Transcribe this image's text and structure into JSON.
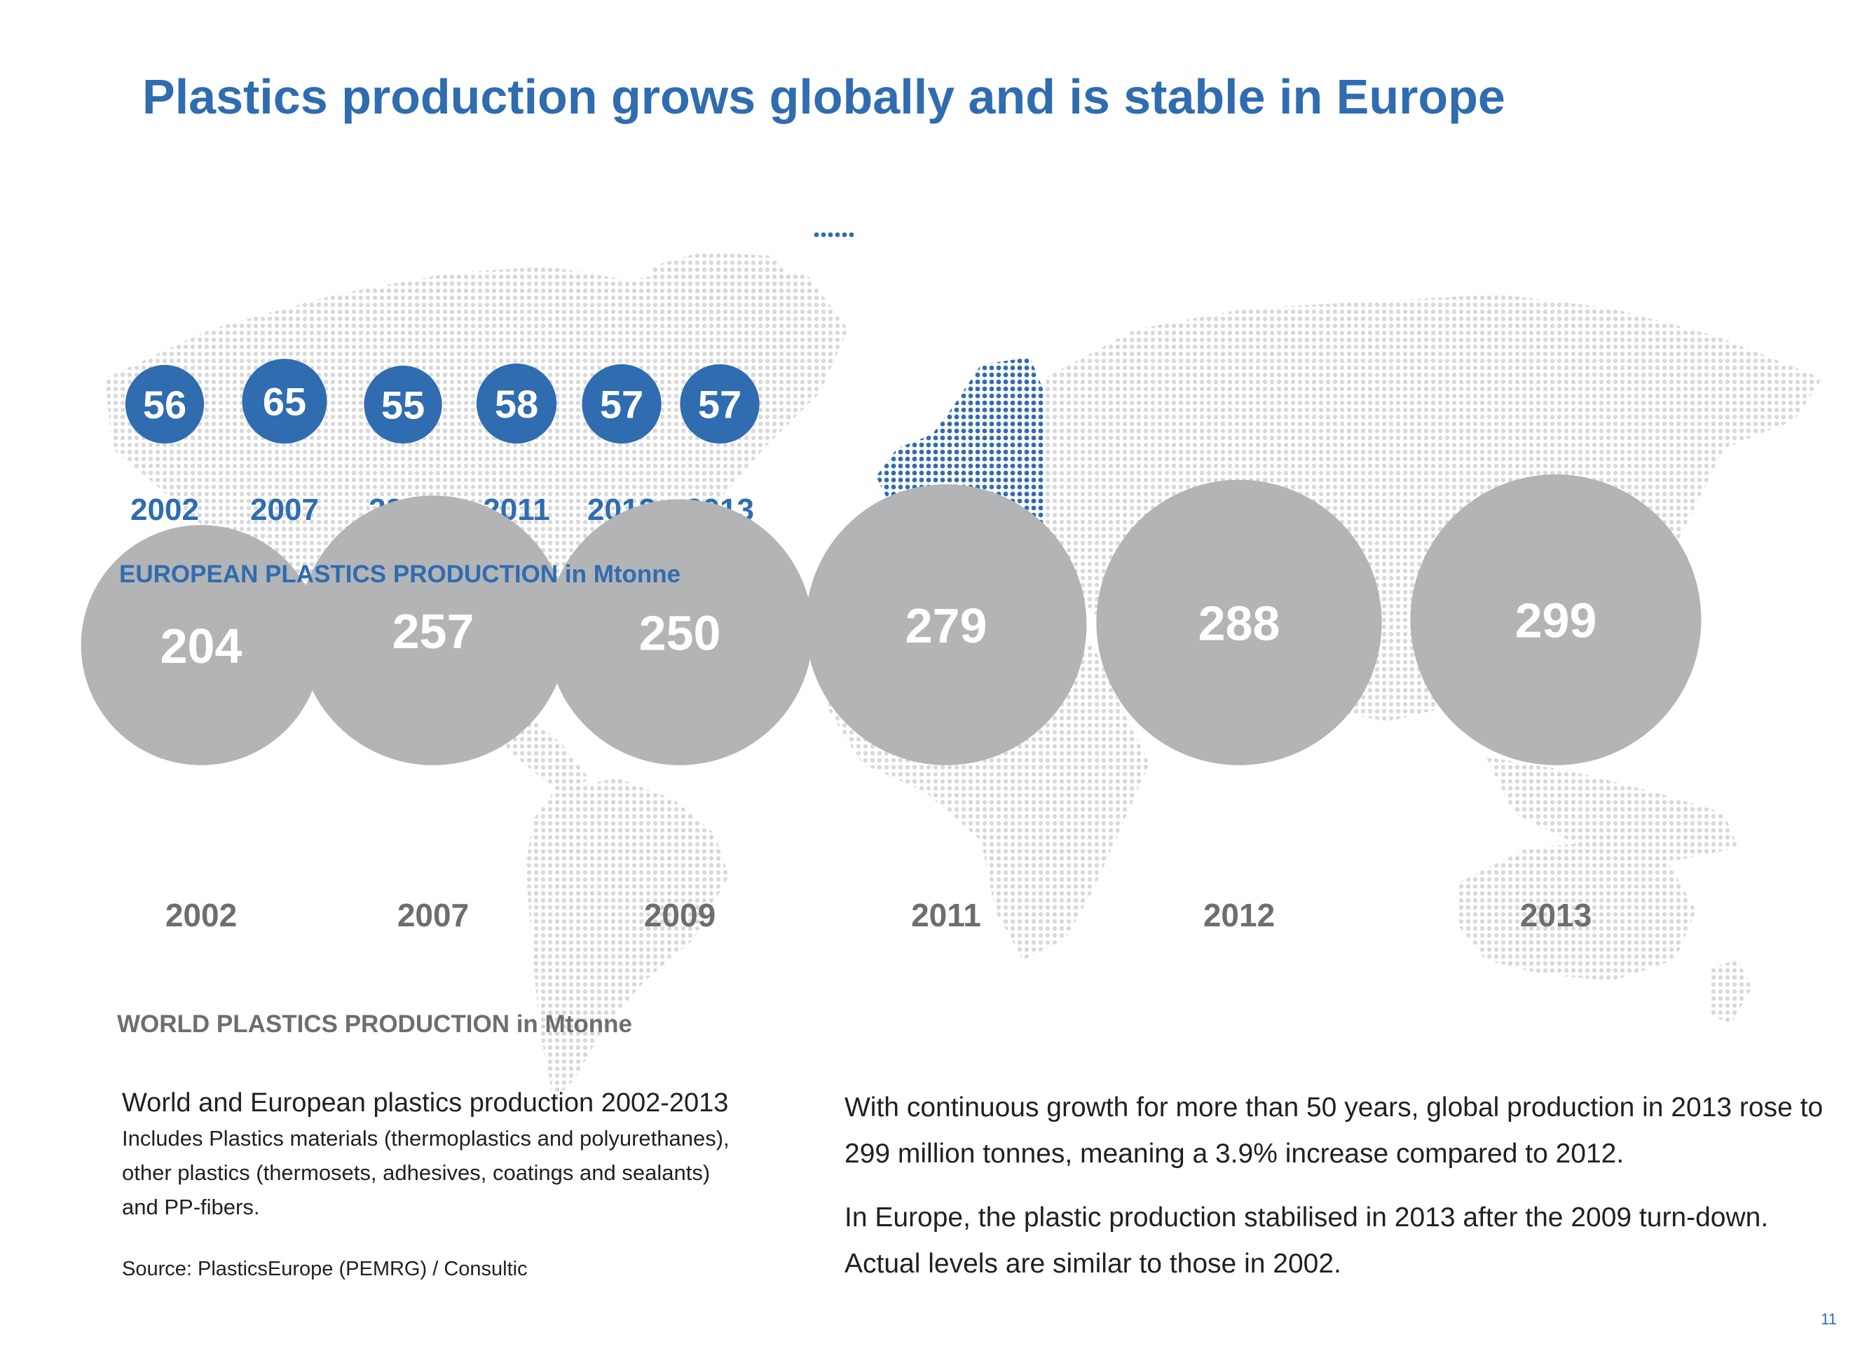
{
  "title": "Plastics production grows globally and is stable in Europe",
  "colors": {
    "accent": "#2f6cb0",
    "grey_bubble": "#b3b4b6",
    "grey_text": "#6d6e71",
    "map_dots": "#d9d9d9",
    "europe_dots": "#2f6cb0"
  },
  "chart_data": [
    {
      "type": "bubble",
      "caption": "EUROPEAN PLASTICS PRODUCTION in Mtonne",
      "unit": "Mtonne",
      "categories": [
        "2002",
        "2007",
        "2009",
        "2011",
        "2012",
        "2013"
      ],
      "values": [
        56,
        65,
        55,
        58,
        57,
        57
      ],
      "color": "#2f6cb0"
    },
    {
      "type": "bubble",
      "caption": "WORLD PLASTICS PRODUCTION in Mtonne",
      "unit": "Mtonne",
      "categories": [
        "2002",
        "2007",
        "2009",
        "2011",
        "2012",
        "2013"
      ],
      "values": [
        204,
        257,
        250,
        279,
        288,
        299
      ],
      "color": "#b3b4b6"
    }
  ],
  "notes": {
    "heading": "World and European  plastics production 2002-2013",
    "line1": "Includes Plastics materials (thermoplastics and polyurethanes),",
    "line2": "other plastics (thermosets, adhesives, coatings and sealants)",
    "line3": "and PP-fibers.",
    "source": "Source: PlasticsEurope (PEMRG) / Consultic"
  },
  "paragraphs": {
    "p1": "With continuous growth for more than 50 years, global production in 2013 rose to 299 million tonnes, meaning a 3.9% increase compared to 2012.",
    "p2": "In Europe, the plastic production stabilised in 2013 after the 2009 turn-down. Actual levels are similar to those in 2002."
  },
  "page_number": "11"
}
